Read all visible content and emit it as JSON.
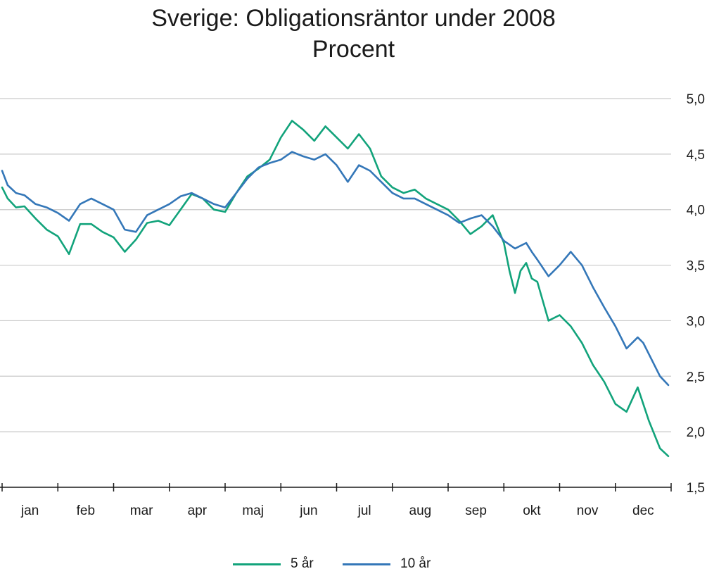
{
  "chart_data": {
    "type": "line",
    "title": "Sverige: Obligationsräntor under 2008",
    "subtitle": "Procent",
    "xlabel": "",
    "ylabel": "",
    "x_categories": [
      "jan",
      "feb",
      "mar",
      "apr",
      "maj",
      "jun",
      "jul",
      "aug",
      "sep",
      "okt",
      "nov",
      "dec"
    ],
    "y_ticks": [
      "5,0",
      "4,5",
      "4,0",
      "3,5",
      "3,0",
      "2,5",
      "2,0",
      "1,5"
    ],
    "ylim": [
      1.5,
      5.0
    ],
    "grid": "horizontal",
    "legend_position": "bottom",
    "series": [
      {
        "name": "5 år",
        "color": "#12a37b",
        "x": [
          0.0,
          0.1,
          0.25,
          0.4,
          0.6,
          0.8,
          1.0,
          1.2,
          1.4,
          1.6,
          1.8,
          2.0,
          2.2,
          2.4,
          2.6,
          2.8,
          3.0,
          3.2,
          3.4,
          3.6,
          3.8,
          4.0,
          4.2,
          4.4,
          4.6,
          4.8,
          5.0,
          5.2,
          5.4,
          5.6,
          5.8,
          6.0,
          6.2,
          6.4,
          6.6,
          6.8,
          7.0,
          7.2,
          7.4,
          7.6,
          7.8,
          8.0,
          8.2,
          8.4,
          8.6,
          8.8,
          9.0,
          9.1,
          9.2,
          9.3,
          9.4,
          9.5,
          9.6,
          9.8,
          10.0,
          10.2,
          10.4,
          10.6,
          10.8,
          11.0,
          11.2,
          11.4,
          11.5,
          11.6,
          11.8,
          11.95
        ],
        "y": [
          4.2,
          4.1,
          4.02,
          4.03,
          3.92,
          3.82,
          3.76,
          3.6,
          3.87,
          3.87,
          3.8,
          3.75,
          3.62,
          3.73,
          3.88,
          3.9,
          3.86,
          4.0,
          4.14,
          4.1,
          4.0,
          3.98,
          4.15,
          4.3,
          4.37,
          4.45,
          4.65,
          4.8,
          4.72,
          4.62,
          4.75,
          4.65,
          4.55,
          4.68,
          4.55,
          4.3,
          4.2,
          4.15,
          4.18,
          4.1,
          4.05,
          4.0,
          3.9,
          3.78,
          3.85,
          3.95,
          3.7,
          3.45,
          3.25,
          3.45,
          3.52,
          3.38,
          3.35,
          3.0,
          3.05,
          2.95,
          2.8,
          2.6,
          2.45,
          2.25,
          2.18,
          2.4,
          2.25,
          2.1,
          1.85,
          1.78
        ]
      },
      {
        "name": "10 år",
        "color": "#3477b8",
        "x": [
          0.0,
          0.1,
          0.25,
          0.4,
          0.6,
          0.8,
          1.0,
          1.2,
          1.4,
          1.6,
          1.8,
          2.0,
          2.2,
          2.4,
          2.6,
          2.8,
          3.0,
          3.2,
          3.4,
          3.6,
          3.8,
          4.0,
          4.2,
          4.4,
          4.6,
          4.8,
          5.0,
          5.2,
          5.4,
          5.6,
          5.8,
          6.0,
          6.2,
          6.4,
          6.6,
          6.8,
          7.0,
          7.2,
          7.4,
          7.6,
          7.8,
          8.0,
          8.2,
          8.4,
          8.6,
          8.8,
          9.0,
          9.2,
          9.4,
          9.5,
          9.6,
          9.8,
          10.0,
          10.2,
          10.4,
          10.6,
          10.8,
          11.0,
          11.2,
          11.4,
          11.5,
          11.6,
          11.8,
          11.95
        ],
        "y": [
          4.35,
          4.22,
          4.15,
          4.13,
          4.05,
          4.02,
          3.97,
          3.9,
          4.05,
          4.1,
          4.05,
          4.0,
          3.82,
          3.8,
          3.95,
          4.0,
          4.05,
          4.12,
          4.15,
          4.1,
          4.05,
          4.02,
          4.15,
          4.28,
          4.38,
          4.42,
          4.45,
          4.52,
          4.48,
          4.45,
          4.5,
          4.4,
          4.25,
          4.4,
          4.35,
          4.25,
          4.15,
          4.1,
          4.1,
          4.05,
          4.0,
          3.95,
          3.88,
          3.92,
          3.95,
          3.85,
          3.72,
          3.65,
          3.7,
          3.62,
          3.55,
          3.4,
          3.5,
          3.62,
          3.5,
          3.3,
          3.12,
          2.95,
          2.75,
          2.85,
          2.8,
          2.7,
          2.5,
          2.42
        ]
      }
    ]
  }
}
